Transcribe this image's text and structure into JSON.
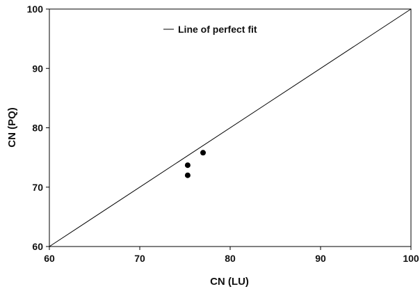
{
  "chart_data": {
    "type": "scatter",
    "title": "",
    "xlabel": "CN (LU)",
    "ylabel": "CN (PQ)",
    "xlim": [
      60,
      100
    ],
    "ylim": [
      60,
      100
    ],
    "xticks": [
      "60",
      "70",
      "80",
      "90",
      "100"
    ],
    "yticks": [
      "60",
      "70",
      "80",
      "90",
      "100"
    ],
    "grid": false,
    "legend_position": "top-left",
    "series": [
      {
        "x": [
          75.3,
          75.3,
          77.0
        ],
        "y": [
          73.7,
          72.0,
          75.8
        ],
        "color": "#000000"
      }
    ],
    "reference_line": {
      "name": "Line of perfect fit",
      "x": [
        60,
        100
      ],
      "y": [
        60,
        100
      ],
      "color": "#000000"
    }
  }
}
